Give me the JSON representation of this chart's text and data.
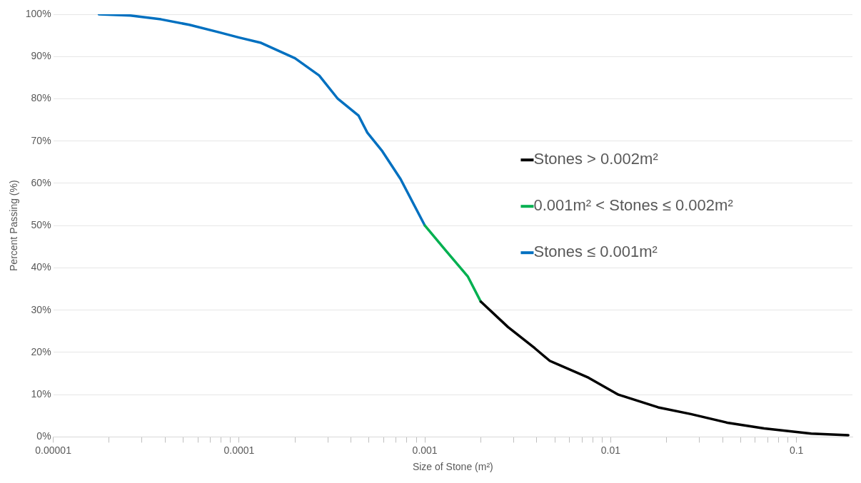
{
  "chart_data": {
    "type": "line",
    "xlabel": "Size of Stone (m²)",
    "ylabel": "Percent Passing (%)",
    "log": "x",
    "grid": "y",
    "legend": "right",
    "marker": "none",
    "line_style": "solid",
    "xlim": [
      1e-05,
      0.2
    ],
    "ylim": [
      0,
      100
    ],
    "xticks": [
      {
        "value": 1e-05,
        "label": "0.00001"
      },
      {
        "value": 2e-05,
        "label": null
      },
      {
        "value": 3e-05,
        "label": null
      },
      {
        "value": 4e-05,
        "label": null
      },
      {
        "value": 5e-05,
        "label": null
      },
      {
        "value": 6e-05,
        "label": null
      },
      {
        "value": 7e-05,
        "label": null
      },
      {
        "value": 8e-05,
        "label": null
      },
      {
        "value": 9e-05,
        "label": null
      },
      {
        "value": 0.0001,
        "label": "0.0001"
      },
      {
        "value": 0.0002,
        "label": null
      },
      {
        "value": 0.0003,
        "label": null
      },
      {
        "value": 0.0004,
        "label": null
      },
      {
        "value": 0.0005,
        "label": null
      },
      {
        "value": 0.0006,
        "label": null
      },
      {
        "value": 0.0007,
        "label": null
      },
      {
        "value": 0.0008,
        "label": null
      },
      {
        "value": 0.0009,
        "label": null
      },
      {
        "value": 0.001,
        "label": "0.001"
      },
      {
        "value": 0.002,
        "label": null
      },
      {
        "value": 0.003,
        "label": null
      },
      {
        "value": 0.004,
        "label": null
      },
      {
        "value": 0.005,
        "label": null
      },
      {
        "value": 0.006,
        "label": null
      },
      {
        "value": 0.007,
        "label": null
      },
      {
        "value": 0.008,
        "label": null
      },
      {
        "value": 0.009,
        "label": null
      },
      {
        "value": 0.01,
        "label": "0.01"
      },
      {
        "value": 0.02,
        "label": null
      },
      {
        "value": 0.03,
        "label": null
      },
      {
        "value": 0.04,
        "label": null
      },
      {
        "value": 0.05,
        "label": null
      },
      {
        "value": 0.06,
        "label": null
      },
      {
        "value": 0.07,
        "label": null
      },
      {
        "value": 0.08,
        "label": null
      },
      {
        "value": 0.09,
        "label": null
      },
      {
        "value": 0.1,
        "label": "0.1"
      }
    ],
    "yticks": [
      {
        "value": 0,
        "label": "0%"
      },
      {
        "value": 10,
        "label": "10%"
      },
      {
        "value": 20,
        "label": "20%"
      },
      {
        "value": 30,
        "label": "30%"
      },
      {
        "value": 40,
        "label": "40%"
      },
      {
        "value": 50,
        "label": "50%"
      },
      {
        "value": 60,
        "label": "60%"
      },
      {
        "value": 70,
        "label": "70%"
      },
      {
        "value": 80,
        "label": "80%"
      },
      {
        "value": 90,
        "label": "90%"
      },
      {
        "value": 100,
        "label": "100%"
      }
    ],
    "series": [
      {
        "name": "Stones > 0.002m²",
        "color": "#000000",
        "x": [
          0.002,
          0.0028,
          0.0039,
          0.0047,
          0.0076,
          0.011,
          0.018,
          0.027,
          0.043,
          0.067,
          0.12,
          0.19
        ],
        "values": [
          32,
          26,
          21,
          18,
          14,
          10,
          7,
          5.4,
          3.3,
          2,
          0.8,
          0.4
        ]
      },
      {
        "name": "0.001m² < Stones ≤ 0.002m²",
        "color": "#00b050",
        "x": [
          0.001,
          0.0013,
          0.0017,
          0.002
        ],
        "values": [
          50,
          44,
          38,
          32
        ]
      },
      {
        "name": "Stones ≤ 0.001m²",
        "color": "#0070c0",
        "x": [
          1.76e-05,
          2.6e-05,
          3.8e-05,
          5.4e-05,
          7.7e-05,
          0.0001,
          0.00013,
          0.0002,
          0.00027,
          0.00034,
          0.00044,
          0.00049,
          0.00059,
          0.00074,
          0.001
        ],
        "values": [
          100,
          99.7,
          98.8,
          97.5,
          95.8,
          94.5,
          93.3,
          89.6,
          85.5,
          80,
          76,
          72,
          67.6,
          61,
          50
        ]
      }
    ]
  }
}
